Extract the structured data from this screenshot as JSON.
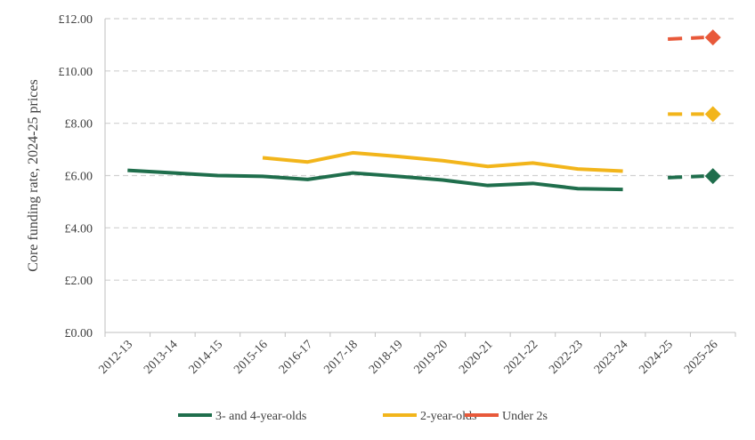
{
  "chart_data": {
    "type": "line",
    "ylabel": "Core funding rate, 2024-25 prices",
    "ylim": [
      0,
      12
    ],
    "y_ticks": [
      "£0.00",
      "£2.00",
      "£4.00",
      "£6.00",
      "£8.00",
      "£10.00",
      "£12.00"
    ],
    "categories": [
      "2012-13",
      "2013-14",
      "2014-15",
      "2015-16",
      "2016-17",
      "2017-18",
      "2018-19",
      "2019-20",
      "2020-21",
      "2021-22",
      "2022-23",
      "2023-24",
      "2024-25",
      "2025-26"
    ],
    "grid": "horizontal dashed",
    "legend_position": "bottom",
    "series": [
      {
        "name": "3- and 4-year-olds",
        "color": "#1f6e4c",
        "values": [
          6.2,
          6.1,
          6.0,
          5.97,
          5.85,
          6.1,
          5.97,
          5.83,
          5.62,
          5.7,
          5.5,
          5.47,
          5.92,
          5.98
        ],
        "projected_from": 12
      },
      {
        "name": "2-year-olds",
        "color": "#f2b51b",
        "values": [
          null,
          null,
          null,
          6.68,
          6.52,
          6.87,
          6.73,
          6.57,
          6.35,
          6.48,
          6.25,
          6.17,
          8.35,
          8.35
        ],
        "projected_from": 12
      },
      {
        "name": "Under 2s",
        "color": "#e8593a",
        "values": [
          null,
          null,
          null,
          null,
          null,
          null,
          null,
          null,
          null,
          null,
          null,
          null,
          11.22,
          11.28
        ],
        "projected_from": 12
      }
    ]
  }
}
